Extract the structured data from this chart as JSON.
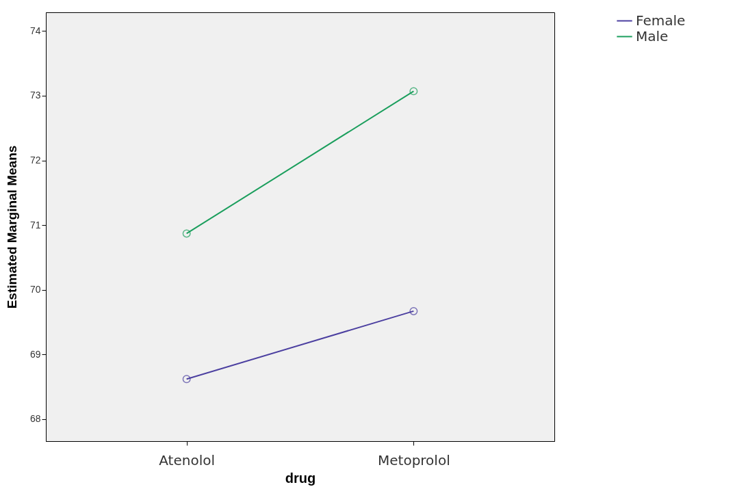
{
  "chart_data": {
    "type": "line",
    "xlabel": "drug",
    "ylabel": "Estimated Marginal Means",
    "categories": [
      "Atenolol",
      "Metoprolol"
    ],
    "series": [
      {
        "name": "Female",
        "color": "#4b3fa0",
        "values": [
          68.62,
          69.67
        ]
      },
      {
        "name": "Male",
        "color": "#1a9e5c",
        "values": [
          70.87,
          73.07
        ]
      }
    ],
    "ylim": [
      67.66,
      74.29
    ],
    "yticks": [
      68,
      69,
      70,
      71,
      72,
      73,
      74
    ],
    "marker": "circle",
    "legend": "top right",
    "grid": false
  }
}
